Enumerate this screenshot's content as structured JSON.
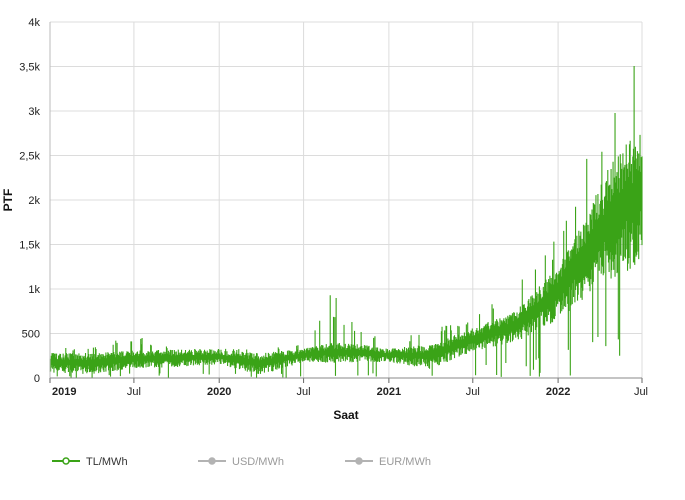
{
  "chart_data": {
    "type": "line",
    "title": "",
    "xlabel": "Saat",
    "ylabel": "PTF",
    "ylim": [
      0,
      4000
    ],
    "xlim": [
      "2019-01-01",
      "2022-07-01"
    ],
    "y_ticks": [
      {
        "value": 0,
        "label": "0"
      },
      {
        "value": 500,
        "label": "500"
      },
      {
        "value": 1000,
        "label": "1k"
      },
      {
        "value": 1500,
        "label": "1,5k"
      },
      {
        "value": 2000,
        "label": "2k"
      },
      {
        "value": 2500,
        "label": "2,5k"
      },
      {
        "value": 3000,
        "label": "3k"
      },
      {
        "value": 3500,
        "label": "3,5k"
      },
      {
        "value": 4000,
        "label": "4k"
      }
    ],
    "x_ticks": [
      {
        "date": "2019-01-01",
        "label": "2019",
        "bold": true
      },
      {
        "date": "2019-07-01",
        "label": "Jul",
        "bold": false
      },
      {
        "date": "2020-01-01",
        "label": "2020",
        "bold": true
      },
      {
        "date": "2020-07-01",
        "label": "Jul",
        "bold": false
      },
      {
        "date": "2021-01-01",
        "label": "2021",
        "bold": true
      },
      {
        "date": "2021-07-01",
        "label": "Jul",
        "bold": false
      },
      {
        "date": "2022-01-01",
        "label": "2022",
        "bold": true
      },
      {
        "date": "2022-07-01",
        "label": "Jul",
        "bold": false
      }
    ],
    "grid": true,
    "legend_position": "bottom-left",
    "series": [
      {
        "name": "TL/MWh",
        "color": "#3aa317",
        "visible": true,
        "band": [
          {
            "date": "2019-01-01",
            "low": 60,
            "high": 290,
            "peak": 340
          },
          {
            "date": "2019-04-01",
            "low": 40,
            "high": 280,
            "peak": 350
          },
          {
            "date": "2019-07-01",
            "low": 110,
            "high": 310,
            "peak": 480
          },
          {
            "date": "2019-10-01",
            "low": 120,
            "high": 320,
            "peak": 330
          },
          {
            "date": "2020-01-01",
            "low": 150,
            "high": 320,
            "peak": 330
          },
          {
            "date": "2020-04-01",
            "low": 30,
            "high": 280,
            "peak": 320
          },
          {
            "date": "2020-07-01",
            "low": 180,
            "high": 330,
            "peak": 380
          },
          {
            "date": "2020-09-01",
            "low": 170,
            "high": 400,
            "peak": 980
          },
          {
            "date": "2020-11-01",
            "low": 180,
            "high": 380,
            "peak": 600
          },
          {
            "date": "2021-01-01",
            "low": 180,
            "high": 330,
            "peak": 400
          },
          {
            "date": "2021-04-01",
            "low": 100,
            "high": 380,
            "peak": 560
          },
          {
            "date": "2021-07-01",
            "low": 300,
            "high": 560,
            "peak": 650
          },
          {
            "date": "2021-10-01",
            "low": 400,
            "high": 750,
            "peak": 1150
          },
          {
            "date": "2022-01-01",
            "low": 650,
            "high": 1250,
            "peak": 1600
          },
          {
            "date": "2022-03-01",
            "low": 900,
            "high": 1800,
            "peak": 2500
          },
          {
            "date": "2022-05-01",
            "low": 1100,
            "high": 2500,
            "peak": 3200
          },
          {
            "date": "2022-07-01",
            "low": 1300,
            "high": 2800,
            "peak": 3650
          }
        ]
      },
      {
        "name": "USD/MWh",
        "color": "#b3b3b3",
        "visible": false
      },
      {
        "name": "EUR/MWh",
        "color": "#b3b3b3",
        "visible": false
      }
    ]
  },
  "legend": {
    "items": [
      {
        "label": "TL/MWh",
        "color": "#3aa317",
        "text_color": "#333333"
      },
      {
        "label": "USD/MWh",
        "color": "#b3b3b3",
        "text_color": "#9a9a9a"
      },
      {
        "label": "EUR/MWh",
        "color": "#b3b3b3",
        "text_color": "#9a9a9a"
      }
    ]
  }
}
